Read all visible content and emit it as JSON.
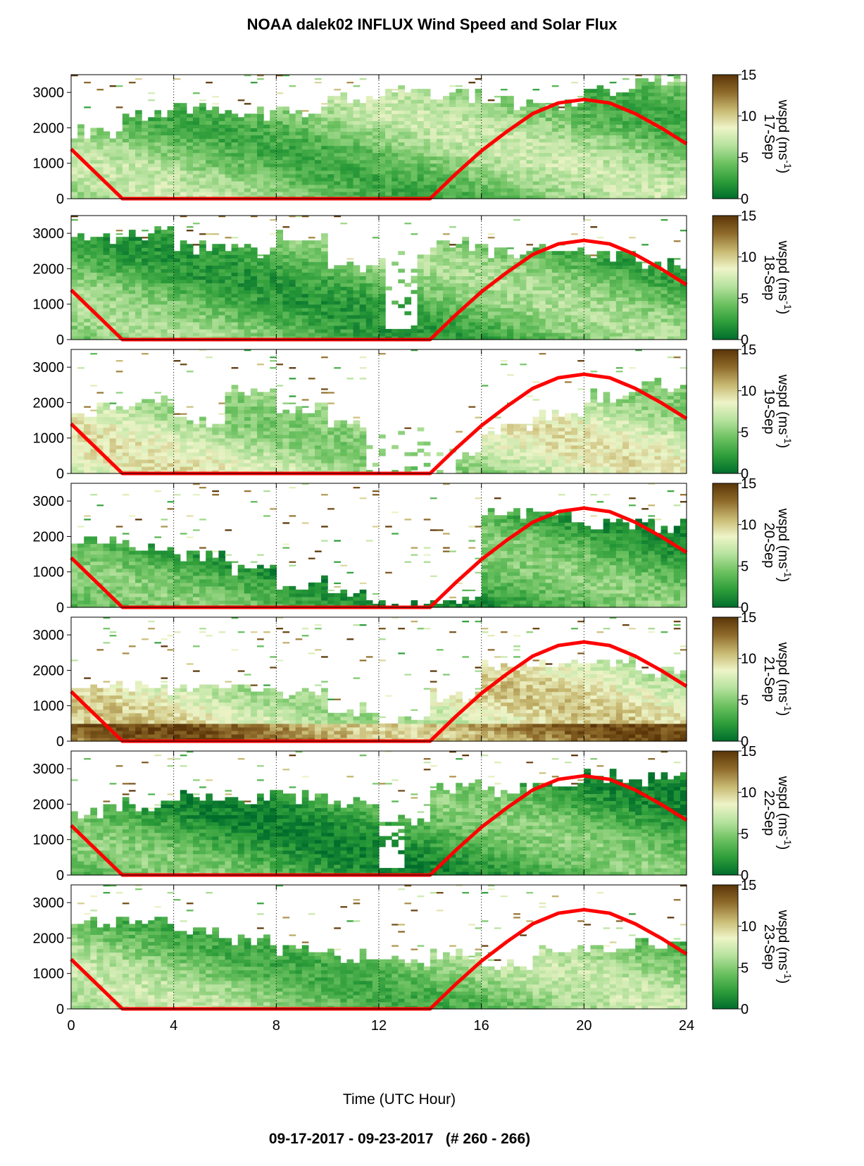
{
  "title": "NOAA dalek02 INFLUX Wind Speed and Solar Flux",
  "footer": "09-17-2017 - 09-23-2017   (# 260 - 266)",
  "colors": {
    "solar_line": "#ff0000",
    "colormap": [
      "#006d2c",
      "#2e9e3a",
      "#6cc160",
      "#b6e29e",
      "#eef4c8",
      "#c7b870",
      "#8e6a2a",
      "#5a3508"
    ]
  },
  "chart_data": {
    "type": "heatmap",
    "xlabel": "Time (UTC Hour)",
    "xlim": [
      0,
      24
    ],
    "x_ticks": [
      "0",
      "4",
      "8",
      "12",
      "16",
      "20",
      "24"
    ],
    "y_ticks": [
      "0",
      "1000",
      "2000",
      "3000"
    ],
    "ylim": [
      0,
      3500
    ],
    "colorbar": {
      "label": "wspd (ms-1)",
      "label_main": "wspd (ms",
      "label_sup": "-1",
      "label_end": ")",
      "range": [
        0,
        15
      ],
      "ticks": [
        "0",
        "5",
        "10",
        "15"
      ]
    },
    "grid": "dotted vertical lines at 4, 8, 12, 16, 20, 24 h",
    "solar_flux_curve": {
      "x": [
        0,
        2,
        14,
        15,
        16,
        17,
        18,
        19,
        20,
        21,
        22,
        23,
        24
      ],
      "y": [
        1400,
        0,
        0,
        700,
        1350,
        1900,
        2400,
        2700,
        2800,
        2700,
        2400,
        2000,
        1550
      ]
    },
    "panels": [
      {
        "date": "17-Sep",
        "coverage_top": [
          1900,
          2300,
          2500,
          2400,
          2500,
          2800,
          3000,
          2900,
          2700,
          2600,
          3000,
          3300
        ],
        "blank_zones": [],
        "mean_wspd": 5
      },
      {
        "date": "18-Sep",
        "coverage_top": [
          2900,
          3000,
          2600,
          2500,
          2900,
          2100,
          2300,
          2700,
          2500,
          2600,
          2400,
          2100
        ],
        "blank_zones": [
          [
            12.2,
            13.6,
            300,
            3400
          ]
        ],
        "mean_wspd": 4
      },
      {
        "date": "19-Sep",
        "coverage_top": [
          1800,
          2000,
          1500,
          2300,
          1800,
          1400,
          1100,
          600,
          1200,
          1700,
          2200,
          2500
        ],
        "blank_zones": [
          [
            11.5,
            15,
            0,
            3400
          ]
        ],
        "mean_wspd": 7
      },
      {
        "date": "20-Sep",
        "coverage_top": [
          2000,
          1700,
          1400,
          1100,
          700,
          300,
          100,
          100,
          2700,
          2600,
          2400,
          2300
        ],
        "blank_zones": [],
        "mean_wspd": 3
      },
      {
        "date": "21-Sep",
        "coverage_top": [
          1600,
          1500,
          1600,
          1500,
          1300,
          900,
          600,
          1300,
          2200,
          2200,
          2200,
          2000
        ],
        "blank_zones": [],
        "mean_wspd": 8
      },
      {
        "date": "22-Sep",
        "coverage_top": [
          1800,
          2000,
          2200,
          2200,
          2200,
          2100,
          1500,
          2500,
          2400,
          2600,
          2800,
          2700
        ],
        "blank_zones": [
          [
            12,
            13,
            200,
            1400
          ]
        ],
        "mean_wspd": 3
      },
      {
        "date": "23-Sep",
        "coverage_top": [
          2400,
          2500,
          2200,
          1900,
          1700,
          1500,
          1300,
          1500,
          1200,
          1600,
          1700,
          1800
        ],
        "blank_zones": [],
        "mean_wspd": 5
      }
    ]
  }
}
